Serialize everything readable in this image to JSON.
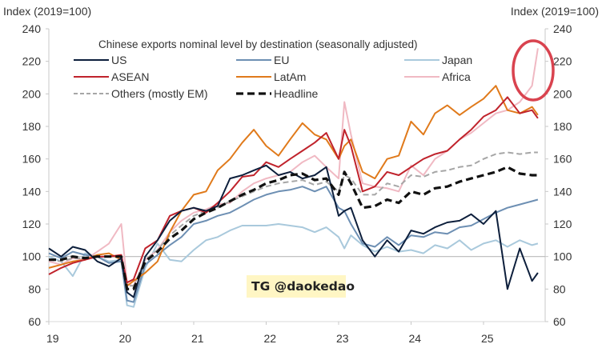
{
  "chart_data": {
    "type": "line",
    "title": "Chinese exports nominal level by destination (seasonally adjusted)",
    "ylabel_left": "Index (2019=100)",
    "ylabel_right": "Index (2019=100)",
    "xlabel": "",
    "ylim": [
      60,
      240
    ],
    "xlim": [
      19,
      25.85
    ],
    "yticks": [
      60,
      80,
      100,
      120,
      140,
      160,
      180,
      200,
      220,
      240
    ],
    "xticks": [
      {
        "value": 19,
        "label": "19"
      },
      {
        "value": 20,
        "label": "20"
      },
      {
        "value": 21,
        "label": "21"
      },
      {
        "value": 22,
        "label": "22"
      },
      {
        "value": 23,
        "label": "23"
      },
      {
        "value": 24,
        "label": "24"
      },
      {
        "value": 25,
        "label": "25"
      }
    ],
    "reference_line": 100,
    "grid": false,
    "legend_position": "top",
    "x": [
      19.0,
      19.17,
      19.33,
      19.5,
      19.67,
      19.83,
      20.0,
      20.08,
      20.17,
      20.33,
      20.5,
      20.67,
      20.83,
      21.0,
      21.17,
      21.33,
      21.5,
      21.67,
      21.83,
      22.0,
      22.17,
      22.33,
      22.5,
      22.67,
      22.83,
      23.0,
      23.08,
      23.17,
      23.33,
      23.5,
      23.67,
      23.83,
      24.0,
      24.17,
      24.33,
      24.5,
      24.67,
      24.83,
      25.0,
      25.17,
      25.33,
      25.5,
      25.67,
      25.75
    ],
    "series": [
      {
        "name": "US",
        "color": "#0d1f3c",
        "dash": "solid",
        "width": 2,
        "values": [
          105,
          100,
          106,
          104,
          97,
          94,
          99,
          78,
          75,
          100,
          110,
          122,
          128,
          130,
          128,
          131,
          148,
          150,
          153,
          156,
          150,
          152,
          148,
          150,
          155,
          125,
          128,
          130,
          110,
          100,
          110,
          103,
          116,
          114,
          118,
          121,
          122,
          126,
          120,
          128,
          80,
          105,
          85,
          90
        ]
      },
      {
        "name": "EU",
        "color": "#6d8fb3",
        "dash": "solid",
        "width": 2,
        "values": [
          102,
          99,
          103,
          101,
          100,
          96,
          97,
          73,
          72,
          95,
          101,
          107,
          112,
          120,
          122,
          125,
          127,
          131,
          135,
          138,
          140,
          141,
          143,
          140,
          143,
          130,
          128,
          120,
          108,
          106,
          112,
          107,
          113,
          112,
          115,
          114,
          118,
          119,
          123,
          127,
          130,
          132,
          134,
          135
        ]
      },
      {
        "name": "Japan",
        "color": "#a9c9dc",
        "dash": "solid",
        "width": 2,
        "values": [
          100,
          97,
          88,
          102,
          100,
          97,
          98,
          70,
          69,
          93,
          108,
          98,
          97,
          104,
          110,
          112,
          116,
          119,
          119,
          119,
          120,
          119,
          118,
          115,
          118,
          112,
          105,
          113,
          107,
          103,
          106,
          103,
          104,
          102,
          107,
          105,
          110,
          104,
          108,
          110,
          106,
          110,
          107,
          108
        ]
      },
      {
        "name": "ASEAN",
        "color": "#c0232c",
        "dash": "solid",
        "width": 2,
        "values": [
          89,
          93,
          96,
          98,
          100,
          100,
          101,
          84,
          86,
          105,
          110,
          125,
          128,
          130,
          127,
          133,
          140,
          149,
          150,
          158,
          155,
          160,
          165,
          170,
          176,
          160,
          178,
          168,
          140,
          143,
          152,
          150,
          155,
          160,
          163,
          165,
          172,
          178,
          186,
          190,
          198,
          188,
          190,
          185
        ]
      },
      {
        "name": "LatAm",
        "color": "#e07a1b",
        "dash": "solid",
        "width": 2,
        "values": [
          93,
          95,
          97,
          98,
          101,
          102,
          98,
          82,
          85,
          90,
          97,
          115,
          128,
          138,
          140,
          153,
          160,
          170,
          178,
          168,
          162,
          172,
          182,
          175,
          172,
          160,
          168,
          172,
          152,
          148,
          160,
          162,
          183,
          175,
          188,
          193,
          187,
          192,
          197,
          205,
          190,
          188,
          192,
          187
        ]
      },
      {
        "name": "Africa",
        "color": "#f0b9c3",
        "dash": "solid",
        "width": 2,
        "values": [
          97,
          95,
          99,
          98,
          103,
          108,
          120,
          83,
          82,
          98,
          104,
          115,
          122,
          127,
          129,
          132,
          133,
          140,
          145,
          148,
          150,
          152,
          158,
          162,
          155,
          148,
          195,
          175,
          145,
          143,
          142,
          140,
          156,
          150,
          160,
          165,
          172,
          176,
          182,
          188,
          190,
          195,
          205,
          228
        ]
      },
      {
        "name": "Others (mostly EM)",
        "color": "#a6a6a6",
        "dash": "dashed",
        "width": 2,
        "values": [
          98,
          97,
          99,
          99,
          100,
          100,
          100,
          82,
          82,
          98,
          104,
          113,
          119,
          125,
          128,
          130,
          134,
          137,
          140,
          143,
          145,
          146,
          147,
          144,
          146,
          140,
          150,
          148,
          138,
          138,
          145,
          143,
          150,
          149,
          152,
          153,
          155,
          156,
          160,
          163,
          164,
          163,
          164,
          164
        ]
      },
      {
        "name": "Headline",
        "color": "#111111",
        "dash": "dashed-bold",
        "width": 3.2,
        "values": [
          98,
          98,
          100,
          99,
          100,
          100,
          100,
          80,
          80,
          97,
          103,
          111,
          116,
          123,
          127,
          130,
          134,
          138,
          141,
          145,
          147,
          150,
          151,
          147,
          148,
          138,
          152,
          145,
          130,
          131,
          135,
          133,
          140,
          138,
          142,
          143,
          146,
          148,
          150,
          152,
          155,
          151,
          150,
          150
        ]
      }
    ],
    "annotations": [
      {
        "type": "ellipse-highlight",
        "color": "#d9434f",
        "target": "Africa latest spike (~25.7-25.8)"
      }
    ]
  },
  "watermark": "TG @daokedao"
}
